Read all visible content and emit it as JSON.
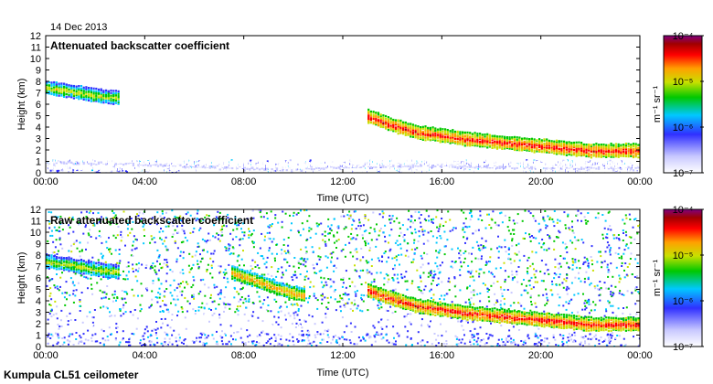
{
  "date": "14 Dec 2013",
  "footer": "Kumpula CL51 ceilometer",
  "colors": {
    "colormap": [
      "#ffffff",
      "#c8c8ff",
      "#3030ff",
      "#00c8ff",
      "#00c800",
      "#c8e000",
      "#ffa000",
      "#ff0000",
      "#a00000",
      "#800080"
    ]
  },
  "chart_data": [
    {
      "type": "heatmap",
      "title": "Attenuated backscatter coefficient",
      "xlabel": "Time (UTC)",
      "ylabel": "Height (km)",
      "xlim": [
        0,
        24
      ],
      "ylim": [
        0,
        12
      ],
      "xticks": [
        0,
        4,
        8,
        12,
        16,
        20,
        24
      ],
      "xtick_labels": [
        "00:00",
        "04:00",
        "08:00",
        "12:00",
        "16:00",
        "20:00",
        "00:00"
      ],
      "yticks": [
        0,
        1,
        2,
        3,
        4,
        5,
        6,
        7,
        8,
        9,
        10,
        11,
        12
      ],
      "ytick_labels": [
        "0",
        "1",
        "2",
        "3",
        "4",
        "5",
        "6",
        "7",
        "8",
        "9",
        "10",
        "11",
        "12"
      ],
      "colorbar": {
        "label": "m⁻¹ sr⁻¹",
        "ticks": [
          "10⁻⁷",
          "10⁻⁶",
          "10⁻⁵",
          "10⁻⁴"
        ],
        "range_log10": [
          -7,
          -4
        ]
      },
      "layers": [
        {
          "name": "cloud-layer-early",
          "t": [
            0,
            1,
            2,
            3
          ],
          "h": [
            7.5,
            7.2,
            6.8,
            6.6
          ],
          "log10_value": -5.3
        },
        {
          "name": "cloud-layer-afternoon",
          "t": [
            13,
            14,
            15,
            16,
            17,
            18,
            19,
            20,
            21,
            22,
            23,
            24
          ],
          "h": [
            5.0,
            4.2,
            3.6,
            3.3,
            3.0,
            2.8,
            2.6,
            2.4,
            2.2,
            2.0,
            2.0,
            2.0
          ],
          "log10_value": -4.7
        },
        {
          "name": "boundary-layer",
          "t": [
            0,
            4,
            8,
            10,
            12,
            16,
            20,
            24
          ],
          "h": [
            1.0,
            0.8,
            0.5,
            0.4,
            0.6,
            0.7,
            0.5,
            0.5
          ],
          "log10_value": -6.6
        }
      ]
    },
    {
      "type": "heatmap",
      "title": "Raw attenuated backscatter coefficient",
      "xlabel": "Time (UTC)",
      "ylabel": "Height (km)",
      "xlim": [
        0,
        24
      ],
      "ylim": [
        0,
        12
      ],
      "xticks": [
        0,
        4,
        8,
        12,
        16,
        20,
        24
      ],
      "xtick_labels": [
        "00:00",
        "04:00",
        "08:00",
        "12:00",
        "16:00",
        "20:00",
        "00:00"
      ],
      "yticks": [
        0,
        1,
        2,
        3,
        4,
        5,
        6,
        7,
        8,
        9,
        10,
        11,
        12
      ],
      "ytick_labels": [
        "0",
        "1",
        "2",
        "3",
        "4",
        "5",
        "6",
        "7",
        "8",
        "9",
        "10",
        "11",
        "12"
      ],
      "colorbar": {
        "label": "m⁻¹ sr⁻¹",
        "ticks": [
          "10⁻⁷",
          "10⁻⁶",
          "10⁻⁵",
          "10⁻⁴"
        ],
        "range_log10": [
          -7,
          -4
        ]
      },
      "layers": [
        {
          "name": "cloud-layer-early",
          "t": [
            0,
            1,
            2,
            3
          ],
          "h": [
            7.5,
            7.2,
            6.8,
            6.6
          ],
          "log10_value": -5.3
        },
        {
          "name": "cloud-layer-midday",
          "t": [
            7.5,
            8.5,
            9.5,
            10.5
          ],
          "h": [
            6.5,
            5.8,
            5.0,
            4.5
          ],
          "log10_value": -5.0
        },
        {
          "name": "cloud-layer-afternoon",
          "t": [
            13,
            14,
            15,
            16,
            17,
            18,
            19,
            20,
            21,
            22,
            23,
            24
          ],
          "h": [
            5.0,
            4.2,
            3.6,
            3.3,
            3.0,
            2.8,
            2.6,
            2.4,
            2.2,
            2.0,
            2.0,
            2.0
          ],
          "log10_value": -4.7
        },
        {
          "name": "noise-background",
          "t": [
            0,
            24
          ],
          "h": [
            1,
            12
          ],
          "log10_value": -5.6
        }
      ]
    }
  ]
}
